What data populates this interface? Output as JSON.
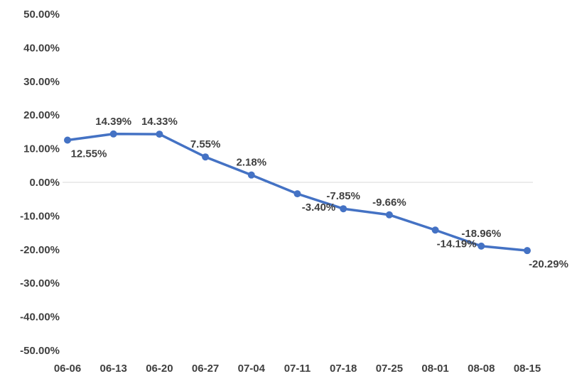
{
  "chart_data": {
    "type": "line",
    "title": "",
    "xlabel": "",
    "ylabel": "",
    "categories": [
      "06-06",
      "06-13",
      "06-20",
      "06-27",
      "07-04",
      "07-11",
      "07-18",
      "07-25",
      "08-01",
      "08-08",
      "08-15"
    ],
    "series": [
      {
        "values": [
          12.55,
          14.39,
          14.33,
          7.55,
          2.18,
          -3.4,
          -7.85,
          -9.66,
          -14.19,
          -18.96,
          -20.29
        ],
        "labels": [
          "12.55%",
          "14.39%",
          "14.33%",
          "7.55%",
          "2.18%",
          "-3.40%",
          "-7.85%",
          "-9.66%",
          "-14.19%",
          "-18.96%",
          "-20.29%"
        ],
        "label_positions": [
          "below",
          "above",
          "above",
          "above",
          "above",
          "below",
          "above",
          "above",
          "below",
          "above",
          "below"
        ],
        "color": "#4472C4"
      }
    ],
    "ylim": [
      -50,
      50
    ],
    "yticks": [
      50,
      40,
      30,
      20,
      10,
      0,
      -10,
      -20,
      -30,
      -40,
      -50
    ],
    "ytick_labels": [
      "50.00%",
      "40.00%",
      "30.00%",
      "20.00%",
      "10.00%",
      "0.00%",
      "-10.00%",
      "-20.00%",
      "-30.00%",
      "-40.00%",
      "-50.00%"
    ],
    "grid": false,
    "zero_line": true,
    "legend": "none"
  }
}
